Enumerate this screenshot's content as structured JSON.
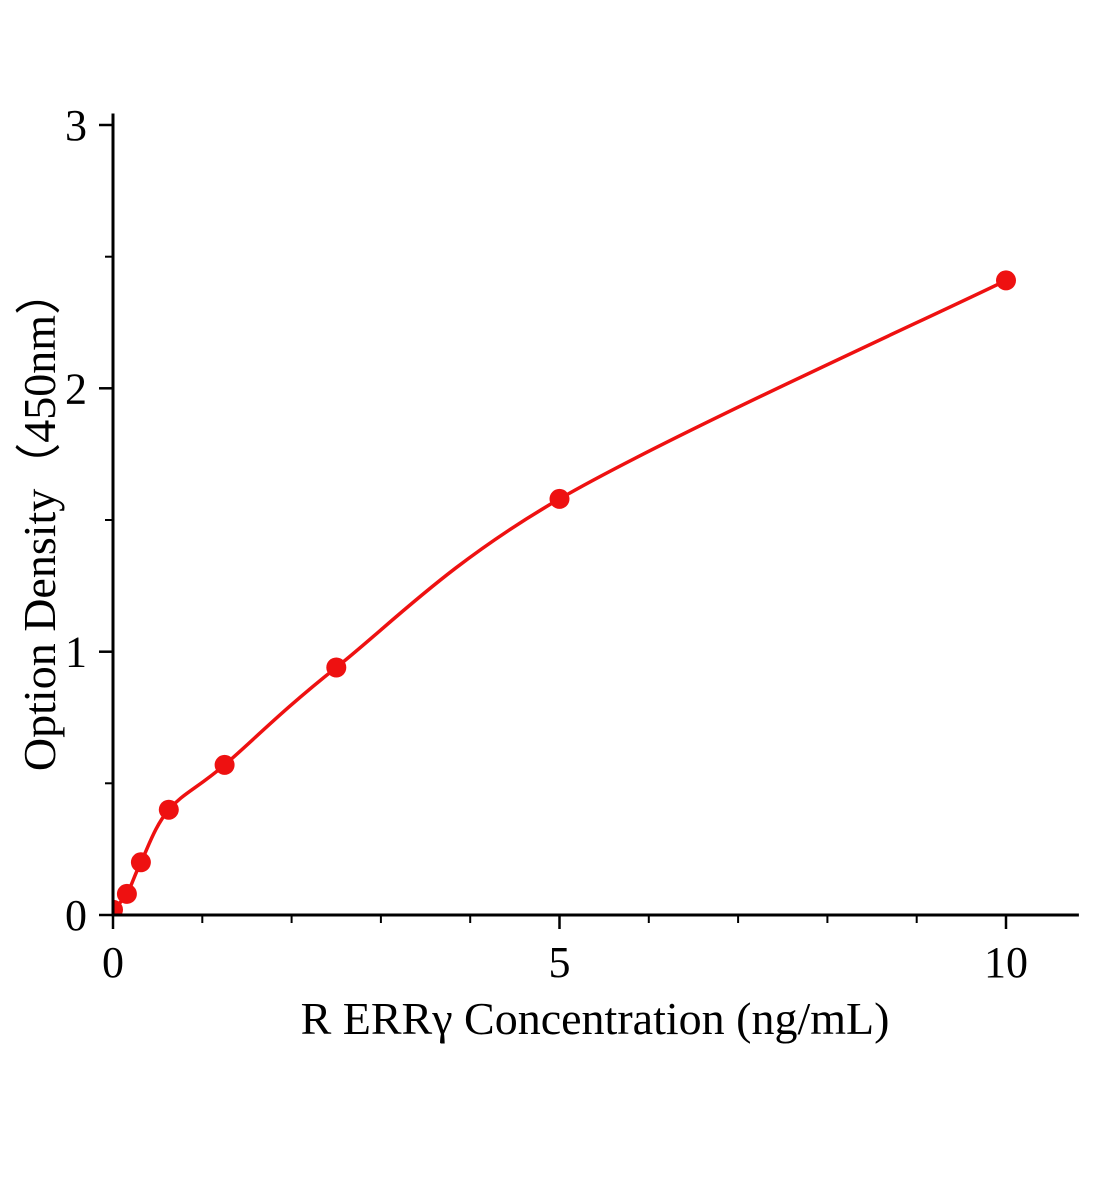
{
  "chart_data": {
    "type": "line",
    "title": "",
    "xlabel": "R ERRγ Concentration (ng/mL)",
    "ylabel": "Option Density（450nm）",
    "x": [
      0,
      0.156,
      0.312,
      0.625,
      1.25,
      2.5,
      5,
      10
    ],
    "y": [
      0.02,
      0.08,
      0.2,
      0.4,
      0.57,
      0.94,
      1.58,
      2.41
    ],
    "xlim": [
      0,
      10.8
    ],
    "ylim": [
      0,
      3
    ],
    "xticks": {
      "major": [
        0,
        5,
        10
      ],
      "labels": [
        "0",
        "5",
        "10"
      ],
      "minor": [
        1,
        2,
        3,
        4,
        6,
        7,
        8,
        9
      ]
    },
    "yticks": {
      "major": [
        0,
        1,
        2,
        3
      ],
      "labels": [
        "0",
        "1",
        "2",
        "3"
      ],
      "minor": [
        0.5,
        1.5,
        2.5
      ]
    },
    "grid": false,
    "legend": null,
    "colors": {
      "line": "#ee1111",
      "marker": "#ee1111",
      "axis": "#000000"
    },
    "marker_radius": 10
  }
}
